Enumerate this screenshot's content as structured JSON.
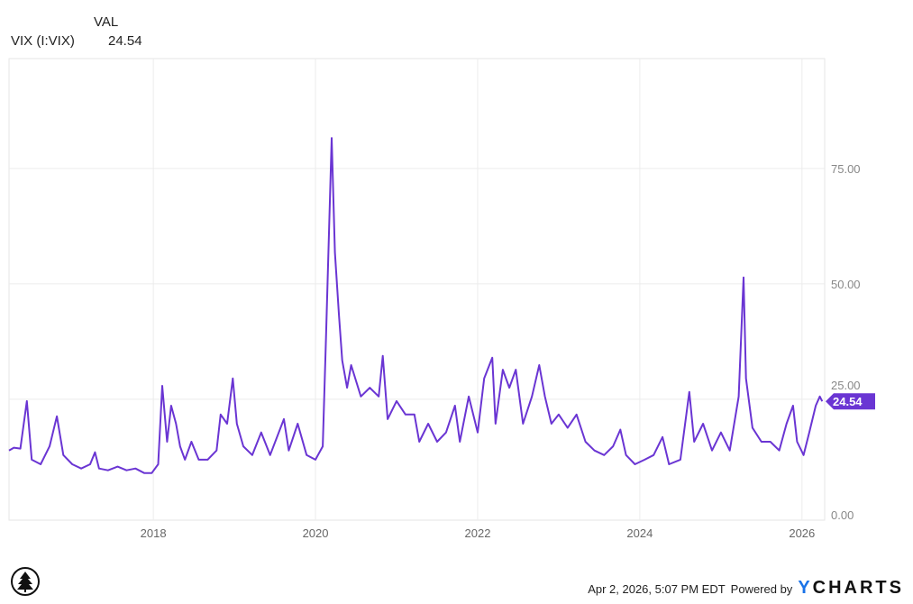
{
  "legend": {
    "column_header": "VAL",
    "series_label": "VIX (I:VIX)",
    "series_value": "24.54"
  },
  "footer": {
    "timestamp": "Apr 2, 2026, 5:07 PM EDT",
    "powered_by": "Powered by",
    "brand_y": "Y",
    "brand_rest": "CHARTS"
  },
  "colors": {
    "line": "#6a35d3",
    "grid": "#ececec",
    "brand_accent": "#1a73e8"
  },
  "chart_data": {
    "type": "line",
    "title": "",
    "xlabel": "",
    "ylabel": "",
    "x_ticks": [
      "2018",
      "2020",
      "2022",
      "2024",
      "2026"
    ],
    "y_ticks": [
      "0.00",
      "25.00",
      "50.00",
      "75.00"
    ],
    "xlim": [
      2016.22,
      2026.28
    ],
    "ylim": [
      -1.2,
      98.8
    ],
    "grid": true,
    "last_value_label": "24.54",
    "series": [
      {
        "name": "VIX (I:VIX)",
        "points": [
          [
            2016.22,
            13.9
          ],
          [
            2016.28,
            14.5
          ],
          [
            2016.36,
            14.3
          ],
          [
            2016.44,
            24.6
          ],
          [
            2016.5,
            11.9
          ],
          [
            2016.61,
            10.9
          ],
          [
            2016.72,
            14.8
          ],
          [
            2016.81,
            21.3
          ],
          [
            2016.89,
            12.9
          ],
          [
            2017.0,
            10.9
          ],
          [
            2017.11,
            10.0
          ],
          [
            2017.22,
            10.9
          ],
          [
            2017.28,
            13.5
          ],
          [
            2017.33,
            10.0
          ],
          [
            2017.44,
            9.6
          ],
          [
            2017.56,
            10.4
          ],
          [
            2017.67,
            9.6
          ],
          [
            2017.78,
            10.0
          ],
          [
            2017.89,
            9.0
          ],
          [
            2017.98,
            9.0
          ],
          [
            2018.06,
            10.9
          ],
          [
            2018.11,
            27.9
          ],
          [
            2018.17,
            15.8
          ],
          [
            2018.22,
            23.6
          ],
          [
            2018.28,
            19.7
          ],
          [
            2018.33,
            14.8
          ],
          [
            2018.39,
            11.9
          ],
          [
            2018.47,
            15.8
          ],
          [
            2018.56,
            11.9
          ],
          [
            2018.67,
            11.9
          ],
          [
            2018.78,
            13.9
          ],
          [
            2018.83,
            21.7
          ],
          [
            2018.91,
            19.7
          ],
          [
            2018.98,
            29.5
          ],
          [
            2019.03,
            19.7
          ],
          [
            2019.11,
            14.8
          ],
          [
            2019.22,
            12.9
          ],
          [
            2019.33,
            17.8
          ],
          [
            2019.44,
            12.9
          ],
          [
            2019.61,
            20.7
          ],
          [
            2019.67,
            13.9
          ],
          [
            2019.78,
            19.7
          ],
          [
            2019.89,
            12.9
          ],
          [
            2020.0,
            11.9
          ],
          [
            2020.09,
            14.8
          ],
          [
            2020.13,
            38.3
          ],
          [
            2020.2,
            81.6
          ],
          [
            2020.24,
            56.8
          ],
          [
            2020.29,
            43.2
          ],
          [
            2020.33,
            33.4
          ],
          [
            2020.39,
            27.5
          ],
          [
            2020.44,
            32.4
          ],
          [
            2020.56,
            25.6
          ],
          [
            2020.67,
            27.5
          ],
          [
            2020.78,
            25.6
          ],
          [
            2020.83,
            34.4
          ],
          [
            2020.89,
            20.7
          ],
          [
            2021.0,
            24.6
          ],
          [
            2021.11,
            21.7
          ],
          [
            2021.22,
            21.7
          ],
          [
            2021.28,
            15.8
          ],
          [
            2021.39,
            19.7
          ],
          [
            2021.5,
            15.8
          ],
          [
            2021.61,
            17.8
          ],
          [
            2021.72,
            23.6
          ],
          [
            2021.78,
            15.8
          ],
          [
            2021.89,
            25.6
          ],
          [
            2022.0,
            17.8
          ],
          [
            2022.08,
            29.5
          ],
          [
            2022.18,
            34.0
          ],
          [
            2022.22,
            19.7
          ],
          [
            2022.31,
            31.4
          ],
          [
            2022.39,
            27.5
          ],
          [
            2022.47,
            31.4
          ],
          [
            2022.56,
            19.7
          ],
          [
            2022.67,
            25.6
          ],
          [
            2022.76,
            32.4
          ],
          [
            2022.83,
            25.6
          ],
          [
            2022.91,
            19.7
          ],
          [
            2023.0,
            21.7
          ],
          [
            2023.11,
            18.8
          ],
          [
            2023.22,
            21.7
          ],
          [
            2023.33,
            15.8
          ],
          [
            2023.44,
            13.9
          ],
          [
            2023.56,
            12.9
          ],
          [
            2023.67,
            14.8
          ],
          [
            2023.76,
            18.4
          ],
          [
            2023.83,
            12.9
          ],
          [
            2023.94,
            10.9
          ],
          [
            2024.06,
            11.9
          ],
          [
            2024.17,
            12.9
          ],
          [
            2024.28,
            16.8
          ],
          [
            2024.36,
            10.9
          ],
          [
            2024.5,
            11.9
          ],
          [
            2024.61,
            26.6
          ],
          [
            2024.67,
            15.8
          ],
          [
            2024.78,
            19.7
          ],
          [
            2024.89,
            13.9
          ],
          [
            2025.0,
            17.8
          ],
          [
            2025.11,
            13.9
          ],
          [
            2025.22,
            25.6
          ],
          [
            2025.28,
            51.4
          ],
          [
            2025.31,
            29.5
          ],
          [
            2025.39,
            18.8
          ],
          [
            2025.5,
            15.8
          ],
          [
            2025.61,
            15.8
          ],
          [
            2025.72,
            13.9
          ],
          [
            2025.81,
            19.7
          ],
          [
            2025.89,
            23.6
          ],
          [
            2025.94,
            15.8
          ],
          [
            2026.02,
            12.9
          ],
          [
            2026.09,
            17.8
          ],
          [
            2026.17,
            23.6
          ],
          [
            2026.22,
            25.6
          ],
          [
            2026.25,
            24.54
          ]
        ]
      }
    ]
  }
}
